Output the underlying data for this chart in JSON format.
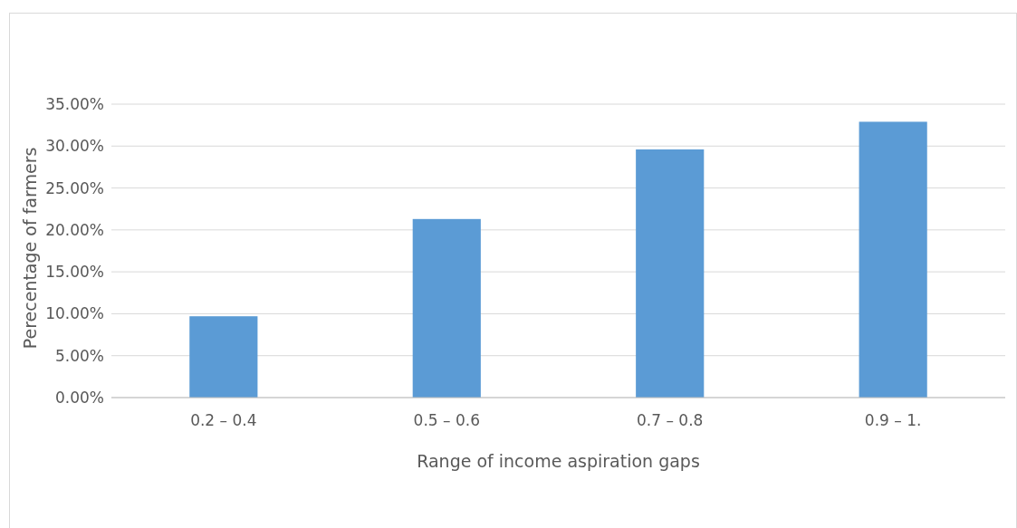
{
  "chart_data": {
    "type": "bar",
    "xlabel": "Range of income aspiration gaps",
    "ylabel": "Perecentage of farmers",
    "categories": [
      "0.2 – 0.4",
      "0.5 – 0.6",
      "0.7 – 0.8",
      "0.9 – 1."
    ],
    "values": [
      9.7,
      21.3,
      29.6,
      32.9
    ],
    "color": "#5b9bd5",
    "ylim": [
      0,
      35
    ],
    "yticks": [
      {
        "value": 0,
        "label": "0.00%"
      },
      {
        "value": 5,
        "label": "5.00%"
      },
      {
        "value": 10,
        "label": "10.00%"
      },
      {
        "value": 15,
        "label": "15.00%"
      },
      {
        "value": 20,
        "label": "20.00%"
      },
      {
        "value": 25,
        "label": "25.00%"
      },
      {
        "value": 30,
        "label": "30.00%"
      },
      {
        "value": 35,
        "label": "35.00%"
      }
    ],
    "grid": "y"
  }
}
